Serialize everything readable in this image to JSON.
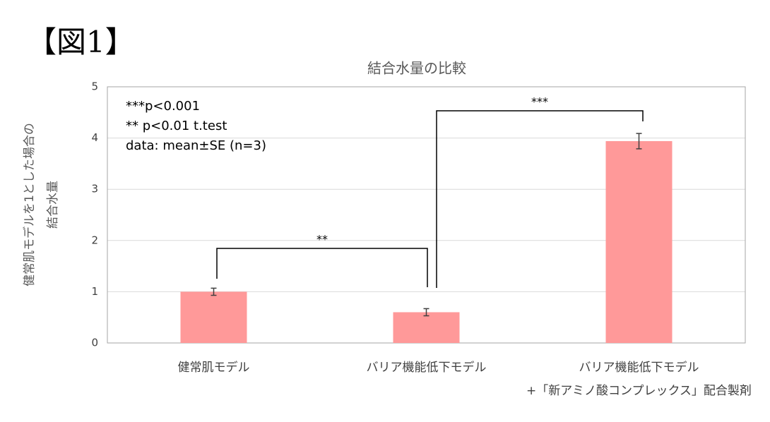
{
  "heading": "【図1】",
  "chart_data": {
    "type": "bar",
    "title": "結合水量の比較",
    "y_label": [
      "健常肌モデルを1とした場合の",
      "結合水量"
    ],
    "categories": [
      [
        "健常肌モデル"
      ],
      [
        "バリア機能低下モデル"
      ],
      [
        "バリア機能低下モデル",
        "+「新アミノ酸コンプレックス」配合製剤"
      ]
    ],
    "series": [
      {
        "color": "#ff9999",
        "values": [
          1.0,
          0.6,
          3.94
        ],
        "errors": [
          0.07,
          0.07,
          0.15
        ]
      }
    ],
    "ylim": [
      0,
      5
    ],
    "yticks": [
      0,
      1,
      2,
      3,
      4,
      5
    ],
    "grid": true,
    "annotations": [
      "***p<0.001",
      "** p<0.01  t.test",
      "data: mean±SE (n=3)"
    ],
    "significance": [
      {
        "from": 0,
        "to": 1,
        "label": "**"
      },
      {
        "from": 1,
        "to": 2,
        "label": "***"
      }
    ]
  }
}
